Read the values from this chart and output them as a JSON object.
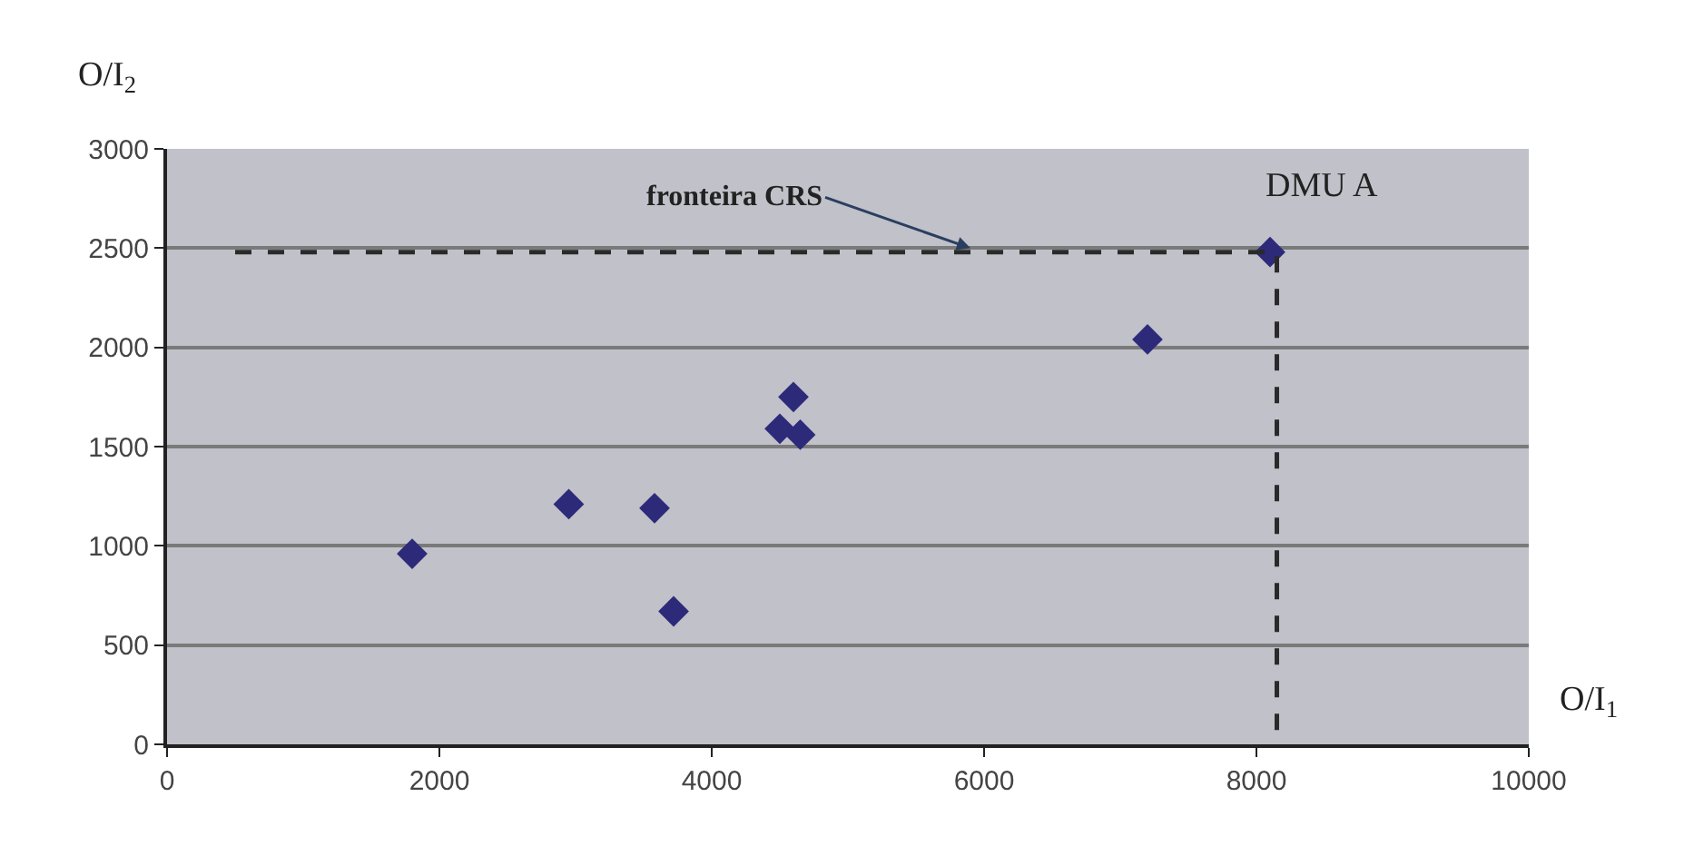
{
  "chart_data": {
    "type": "scatter",
    "xlabel": "O/I$_{1}$",
    "ylabel": "O/I$_{2}$",
    "xlim": [
      0,
      10000
    ],
    "ylim": [
      0,
      3000
    ],
    "xticks": [
      0,
      2000,
      4000,
      6000,
      8000,
      10000
    ],
    "yticks": [
      0,
      500,
      1000,
      1500,
      2000,
      2500,
      3000
    ],
    "grid": "y",
    "series": [
      {
        "color": "#2e2a7a",
        "marker": "diamond",
        "x": [
          1800,
          2950,
          3580,
          3720,
          4500,
          4600,
          4650,
          7200,
          8100
        ],
        "values": [
          960,
          1210,
          1190,
          670,
          1590,
          1750,
          1560,
          2040,
          2480
        ]
      },
      {
        "type": "line",
        "color": "#2a2a2a",
        "line_style": "dashed",
        "marker": "none",
        "x": [
          500,
          8150,
          8150
        ],
        "values": [
          2480,
          2480,
          0
        ]
      }
    ],
    "annotations": [
      {
        "text": "fronteira CRS",
        "x": 5900,
        "y": 2500
      },
      {
        "text": "DMU A",
        "x": 8100,
        "y": 2480
      }
    ]
  }
}
